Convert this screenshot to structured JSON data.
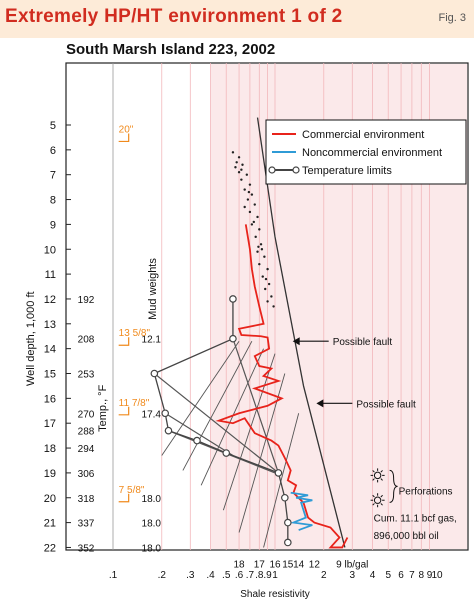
{
  "header": {
    "title": "Extremely HP/HT environment 1 of 2",
    "fig": "Fig. 3"
  },
  "chart_data": {
    "type": "line",
    "title": "South Marsh Island 223, 2002",
    "xlabel": "Shale resistivity",
    "ylabel": "Well depth, 1,000 ft",
    "x_scale": "log",
    "xlim": [
      0.1,
      10
    ],
    "ylim": [
      22,
      4.3
    ],
    "x_tick_labels": [
      {
        "v": 0.1,
        "t": ".1"
      },
      {
        "v": 0.2,
        "t": ".2"
      },
      {
        "v": 0.3,
        "t": ".3"
      },
      {
        "v": 0.4,
        "t": ".4"
      },
      {
        "v": 0.5,
        "t": ".5"
      },
      {
        "v": 0.6,
        "t": ".6"
      },
      {
        "v": 0.7,
        "t": ".7"
      },
      {
        "v": 0.8,
        "t": ".8"
      },
      {
        "v": 0.9,
        "t": ".9"
      },
      {
        "v": 1,
        "t": "1"
      },
      {
        "v": 2,
        "t": "2"
      },
      {
        "v": 3,
        "t": "3"
      },
      {
        "v": 4,
        "t": "4"
      },
      {
        "v": 5,
        "t": "5"
      },
      {
        "v": 6,
        "t": "6"
      },
      {
        "v": 7,
        "t": "7"
      },
      {
        "v": 8,
        "t": "8"
      },
      {
        "v": 9,
        "t": "9"
      },
      {
        "v": 10,
        "t": "10"
      }
    ],
    "y_ticks": [
      5,
      6,
      7,
      8,
      9,
      10,
      11,
      12,
      13,
      14,
      15,
      16,
      17,
      18,
      19,
      20,
      21,
      22
    ],
    "temperature_axis": {
      "label": "Temp., °F",
      "ticks": [
        {
          "y": 12,
          "t": "192"
        },
        {
          "y": 13.6,
          "t": "208"
        },
        {
          "y": 15,
          "t": "253"
        },
        {
          "y": 16.6,
          "t": "270"
        },
        {
          "y": 17.3,
          "t": "288"
        },
        {
          "y": 18,
          "t": "294"
        },
        {
          "y": 19,
          "t": "306"
        },
        {
          "y": 20,
          "t": "318"
        },
        {
          "y": 21,
          "t": "337"
        },
        {
          "y": 22,
          "t": "352"
        }
      ]
    },
    "mud_weights": {
      "label": "Mud weights",
      "values": [
        {
          "y": 13.6,
          "t": "12.1"
        },
        {
          "y": 16.6,
          "t": "17.4"
        },
        {
          "y": 20,
          "t": "18.0"
        },
        {
          "y": 21,
          "t": "18.0"
        },
        {
          "y": 22,
          "t": "18.0"
        }
      ]
    },
    "casing_marks": [
      {
        "y": 5.3,
        "t": "20\""
      },
      {
        "y": 13.5,
        "t": "13 5/8\""
      },
      {
        "y": 16.3,
        "t": "11 7/8\""
      },
      {
        "y": 19.8,
        "t": "7 5/8\""
      }
    ],
    "iso_lines": {
      "labels": [
        {
          "x": 0.6,
          "t": "18"
        },
        {
          "x": 0.8,
          "t": "17"
        },
        {
          "x": 1.0,
          "t": "16"
        },
        {
          "x": 1.2,
          "t": "15"
        },
        {
          "x": 1.4,
          "t": "14"
        },
        {
          "x": 1.75,
          "t": "12"
        },
        {
          "x": 3.0,
          "t": "9 lb/gal"
        }
      ],
      "lines": [
        [
          [
            0.2,
            18.3
          ],
          [
            0.6,
            13.7
          ]
        ],
        [
          [
            0.27,
            18.9
          ],
          [
            0.72,
            13.7
          ]
        ],
        [
          [
            0.35,
            19.5
          ],
          [
            0.85,
            14.0
          ]
        ],
        [
          [
            0.48,
            20.5
          ],
          [
            1.0,
            14.2
          ]
        ],
        [
          [
            0.6,
            21.4
          ],
          [
            1.15,
            15.0
          ]
        ],
        [
          [
            0.85,
            22.0
          ],
          [
            1.4,
            16.6
          ]
        ]
      ]
    },
    "trend_line": [
      [
        0.78,
        4.7
      ],
      [
        1.0,
        9.5
      ],
      [
        1.5,
        15.5
      ],
      [
        2.7,
        22.0
      ]
    ],
    "series": [
      {
        "name": "Commercial environment",
        "color": "#e8231b",
        "points": [
          [
            0.66,
            9.0
          ],
          [
            0.7,
            10.0
          ],
          [
            0.72,
            10.8
          ],
          [
            0.75,
            11.5
          ],
          [
            0.8,
            12.3
          ],
          [
            0.85,
            13.0
          ],
          [
            0.6,
            13.2
          ],
          [
            0.62,
            13.45
          ],
          [
            0.82,
            13.5
          ],
          [
            0.9,
            13.55
          ],
          [
            0.92,
            14.0
          ],
          [
            0.75,
            14.3
          ],
          [
            0.8,
            14.7
          ],
          [
            0.95,
            14.8
          ],
          [
            0.85,
            15.1
          ],
          [
            1.05,
            15.3
          ],
          [
            0.75,
            15.6
          ],
          [
            1.0,
            15.9
          ],
          [
            1.1,
            16.0
          ],
          [
            0.9,
            16.3
          ],
          [
            0.6,
            16.6
          ],
          [
            0.45,
            16.9
          ],
          [
            0.55,
            17.0
          ],
          [
            0.65,
            16.8
          ],
          [
            0.75,
            17.4
          ],
          [
            0.95,
            17.7
          ],
          [
            1.05,
            17.9
          ],
          [
            1.15,
            18.4
          ],
          [
            1.25,
            18.9
          ],
          [
            1.2,
            19.3
          ],
          [
            1.35,
            19.5
          ],
          [
            1.3,
            19.8
          ],
          [
            1.5,
            20.2
          ],
          [
            1.6,
            20.8
          ],
          [
            1.75,
            21.0
          ],
          [
            2.2,
            21.2
          ],
          [
            2.5,
            21.6
          ],
          [
            2.2,
            22.0
          ],
          [
            2.6,
            22.0
          ],
          [
            2.8,
            21.6
          ]
        ]
      },
      {
        "name": "Noncommercial environment",
        "color": "#2f9bd6",
        "points": [
          [
            1.25,
            19.8
          ],
          [
            1.6,
            19.9
          ],
          [
            1.35,
            20.0
          ],
          [
            1.7,
            20.1
          ],
          [
            1.45,
            20.2
          ],
          [
            1.55,
            20.8
          ],
          [
            1.3,
            21.0
          ],
          [
            1.7,
            21.1
          ],
          [
            1.4,
            21.3
          ]
        ]
      },
      {
        "name": "Temperature limits",
        "color": "#444444",
        "marker": "circle",
        "points": [
          [
            0.55,
            12.0
          ],
          [
            0.55,
            13.6
          ],
          [
            0.18,
            15.0
          ],
          [
            0.21,
            16.6
          ],
          [
            0.22,
            17.3
          ],
          [
            0.33,
            17.7
          ],
          [
            0.5,
            18.2
          ],
          [
            1.05,
            19.0
          ],
          [
            1.15,
            20.0
          ],
          [
            1.2,
            21.0
          ],
          [
            1.2,
            21.8
          ]
        ]
      }
    ],
    "temperature_gradient_lines": [
      [
        [
          0.55,
          13.6
        ],
        [
          1.05,
          19.0
        ]
      ],
      [
        [
          0.21,
          16.6
        ],
        [
          0.55,
          18.3
        ]
      ],
      [
        [
          0.22,
          17.3
        ],
        [
          1.0,
          19.0
        ]
      ],
      [
        [
          0.18,
          15.0
        ],
        [
          1.05,
          19.0
        ]
      ]
    ],
    "scatter": [
      [
        0.55,
        6.1
      ],
      [
        0.6,
        6.3
      ],
      [
        0.58,
        6.5
      ],
      [
        0.63,
        6.6
      ],
      [
        0.6,
        6.9
      ],
      [
        0.67,
        7.0
      ],
      [
        0.62,
        7.2
      ],
      [
        0.7,
        7.4
      ],
      [
        0.65,
        7.6
      ],
      [
        0.72,
        7.8
      ],
      [
        0.68,
        8.0
      ],
      [
        0.75,
        8.2
      ],
      [
        0.7,
        8.5
      ],
      [
        0.78,
        8.7
      ],
      [
        0.72,
        9.0
      ],
      [
        0.8,
        9.2
      ],
      [
        0.76,
        9.5
      ],
      [
        0.82,
        9.8
      ],
      [
        0.78,
        10.1
      ],
      [
        0.86,
        10.3
      ],
      [
        0.8,
        10.6
      ],
      [
        0.9,
        10.8
      ],
      [
        0.84,
        11.1
      ],
      [
        0.92,
        11.4
      ],
      [
        0.87,
        11.6
      ],
      [
        0.95,
        11.9
      ],
      [
        0.9,
        12.1
      ],
      [
        0.98,
        12.3
      ],
      [
        0.62,
        6.8
      ],
      [
        0.69,
        7.7
      ],
      [
        0.74,
        8.9
      ],
      [
        0.83,
        10.0
      ],
      [
        0.88,
        11.2
      ],
      [
        0.57,
        6.7
      ],
      [
        0.65,
        8.3
      ],
      [
        0.79,
        9.9
      ]
    ],
    "annotations": [
      {
        "text": "Possible fault",
        "x": 1.25,
        "y": 13.7
      },
      {
        "text": "Possible fault",
        "x": 1.75,
        "y": 16.2
      },
      {
        "text": "Perforations",
        "y": 19.7
      },
      {
        "text": "Cum. 11.1 bcf gas,",
        "y": 20.8
      },
      {
        "text": "896,000 bbl oil",
        "y": 21.5
      }
    ],
    "legend_position": "top-right"
  }
}
